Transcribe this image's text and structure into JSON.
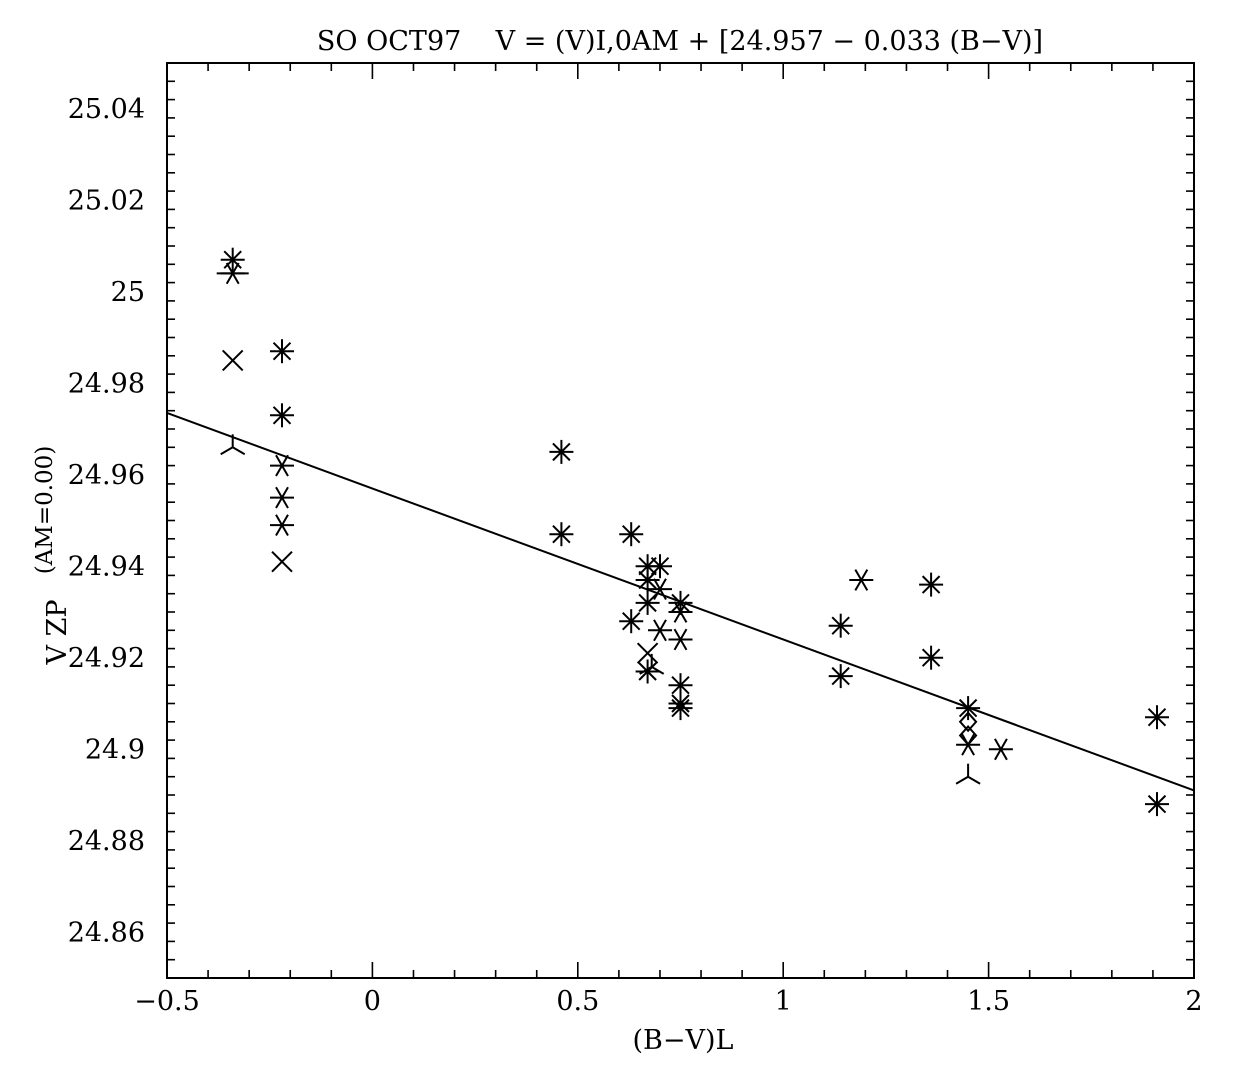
{
  "chart_data": {
    "type": "scatter",
    "title": "SO OCT97    V = (V)I,0AM + [24.957 − 0.033 (B−V)]",
    "xlabel": "(B−V)L",
    "ylabel_main": "V ZP",
    "ylabel_sub": "(AM=0.00)",
    "xlim": [
      -0.5,
      2.0
    ],
    "ylim": [
      24.85,
      25.05
    ],
    "x_ticks": [
      -0.5,
      0,
      0.5,
      1,
      1.5,
      2
    ],
    "x_tick_labels": [
      "−0.5",
      "0",
      "0.5",
      "1",
      "1.5",
      "2"
    ],
    "y_ticks": [
      24.86,
      24.88,
      24.9,
      24.92,
      24.94,
      24.96,
      24.98,
      25.0,
      25.02,
      25.04
    ],
    "y_tick_labels": [
      "24.86",
      "24.88",
      "24.9",
      "24.92",
      "24.94",
      "24.96",
      "24.98",
      "25",
      "25.02",
      "25.04"
    ],
    "grid": false,
    "fit_line": {
      "intercept": 24.957,
      "slope": -0.033
    },
    "series": [
      {
        "marker": "asterisk",
        "points": [
          [
            -0.34,
            25.007
          ],
          [
            -0.22,
            24.987
          ],
          [
            -0.22,
            24.973
          ],
          [
            0.46,
            24.965
          ],
          [
            0.46,
            24.947
          ],
          [
            0.63,
            24.947
          ],
          [
            0.63,
            24.928
          ],
          [
            0.67,
            24.94
          ],
          [
            0.67,
            24.937
          ],
          [
            0.67,
            24.932
          ],
          [
            0.67,
            24.917
          ],
          [
            0.7,
            24.94
          ],
          [
            0.75,
            24.932
          ],
          [
            0.75,
            24.914
          ],
          [
            0.75,
            24.91
          ],
          [
            0.75,
            24.909
          ],
          [
            1.14,
            24.927
          ],
          [
            1.14,
            24.916
          ],
          [
            1.36,
            24.936
          ],
          [
            1.36,
            24.92
          ],
          [
            1.45,
            24.909
          ],
          [
            1.91,
            24.907
          ],
          [
            1.91,
            24.888
          ]
        ]
      },
      {
        "marker": "star6",
        "points": [
          [
            -0.34,
            25.004
          ],
          [
            -0.22,
            24.962
          ],
          [
            -0.22,
            24.955
          ],
          [
            -0.22,
            24.949
          ],
          [
            0.7,
            24.935
          ],
          [
            0.75,
            24.93
          ],
          [
            0.75,
            24.924
          ],
          [
            0.7,
            24.926
          ],
          [
            1.19,
            24.937
          ],
          [
            1.53,
            24.9
          ],
          [
            1.45,
            24.901
          ]
        ]
      },
      {
        "marker": "cross",
        "points": [
          [
            -0.34,
            24.985
          ],
          [
            -0.22,
            24.941
          ],
          [
            0.67,
            24.921
          ]
        ]
      },
      {
        "marker": "tri",
        "points": [
          [
            -0.34,
            24.966
          ],
          [
            1.45,
            24.894
          ],
          [
            0.68,
            24.918
          ]
        ]
      },
      {
        "marker": "diamond",
        "points": [
          [
            1.45,
            24.906
          ],
          [
            1.45,
            24.903
          ]
        ]
      },
      {
        "marker": "hbar",
        "points": [
          [
            -0.34,
            25.004
          ]
        ]
      }
    ]
  }
}
